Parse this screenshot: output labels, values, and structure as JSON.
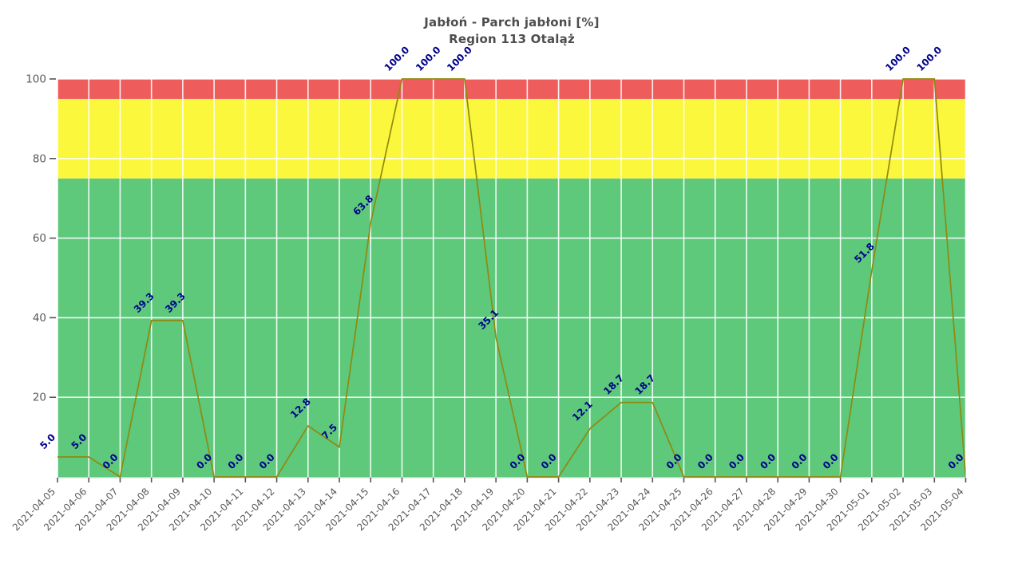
{
  "chart_data": {
    "type": "line",
    "title": "Jabłoń - Parch jabłoni [%]",
    "subtitle": "Region 113 Otaląż",
    "x": [
      "2021-04-05",
      "2021-04-06",
      "2021-04-07",
      "2021-04-08",
      "2021-04-09",
      "2021-04-10",
      "2021-04-11",
      "2021-04-12",
      "2021-04-13",
      "2021-04-14",
      "2021-04-15",
      "2021-04-16",
      "2021-04-17",
      "2021-04-18",
      "2021-04-19",
      "2021-04-20",
      "2021-04-21",
      "2021-04-22",
      "2021-04-23",
      "2021-04-24",
      "2021-04-25",
      "2021-04-26",
      "2021-04-27",
      "2021-04-28",
      "2021-04-29",
      "2021-04-30",
      "2021-05-01",
      "2021-05-02",
      "2021-05-03",
      "2021-05-04"
    ],
    "values": [
      5.0,
      5.0,
      0.0,
      39.3,
      39.3,
      0.0,
      0.0,
      0.0,
      12.8,
      7.5,
      63.8,
      100.0,
      100.0,
      100.0,
      35.1,
      0.0,
      0.0,
      12.1,
      18.7,
      18.7,
      0.0,
      0.0,
      0.0,
      0.0,
      0.0,
      0.0,
      51.8,
      100.0,
      100.0,
      0.0
    ],
    "label_decimals": 1,
    "ylim": [
      0,
      100
    ],
    "yticks": [
      20,
      40,
      60,
      80,
      100
    ],
    "zones": [
      {
        "name": "low",
        "from": 0,
        "to": 75,
        "color": "#5ec87b"
      },
      {
        "name": "medium",
        "from": 75,
        "to": 95,
        "color": "#fbf73d"
      },
      {
        "name": "high",
        "from": 95,
        "to": 100,
        "color": "#ee5c5c"
      }
    ],
    "line_color": "#8f8a10",
    "point_label_color": "#00008b",
    "grid_color": "#ffffff",
    "axis_text_color": "#595959",
    "tick_color": "#555555",
    "spine_color": "#cccccc",
    "title_color": "#4d4d4d",
    "background": "#ffffff",
    "legend": "none",
    "grid": "on"
  }
}
